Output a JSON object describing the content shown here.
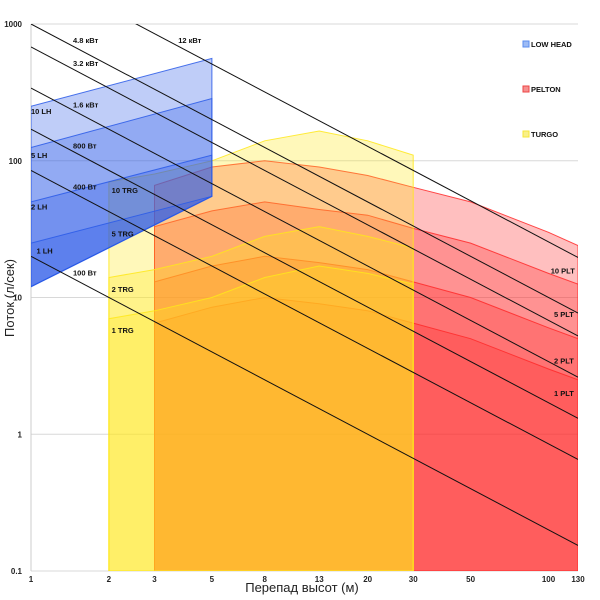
{
  "chart_data": {
    "type": "area",
    "xlabel": "Перепад высот (м)",
    "ylabel": "Поток (л/сек)",
    "x_scale": "log",
    "y_scale": "log",
    "xlim": [
      1,
      130
    ],
    "ylim": [
      0.1,
      1000
    ],
    "x_ticks": [
      {
        "value": 1,
        "label": "1"
      },
      {
        "value": 2,
        "label": "2"
      },
      {
        "value": 3,
        "label": "3"
      },
      {
        "value": 5,
        "label": "5"
      },
      {
        "value": 8,
        "label": "8"
      },
      {
        "value": 13,
        "label": "13"
      },
      {
        "value": 20,
        "label": "20"
      },
      {
        "value": 30,
        "label": "30"
      },
      {
        "value": 50,
        "label": "50"
      },
      {
        "value": 100,
        "label": "100"
      },
      {
        "value": 130,
        "label": "130"
      }
    ],
    "y_ticks": [
      {
        "value": 0.1,
        "label": "0.1"
      },
      {
        "value": 1,
        "label": "1"
      },
      {
        "value": 10,
        "label": "10"
      },
      {
        "value": 100,
        "label": "100"
      },
      {
        "value": 1000,
        "label": "1000"
      }
    ],
    "grid": "horizontal",
    "legend": [
      {
        "name": "LOW HEAD",
        "color": "#5b8def"
      },
      {
        "name": "PELTON",
        "color": "#ee4444"
      },
      {
        "name": "TURGO",
        "color": "#f5e63a"
      }
    ],
    "legend_placement": "top-right",
    "power_lines": [
      {
        "label": "100 Вт",
        "q_at_1m": 20
      },
      {
        "label": "400 Вт",
        "q_at_1m": 85
      },
      {
        "label": "800 Вт",
        "q_at_1m": 170
      },
      {
        "label": "1.6 кВт",
        "q_at_1m": 340
      },
      {
        "label": "3.2 кВт",
        "q_at_1m": 680
      },
      {
        "label": "4.8 кВт",
        "q_at_1m": 1000
      },
      {
        "label": "12 кВт",
        "q_at_1m": 2550
      }
    ],
    "regions": [
      {
        "family": "PELTON",
        "color": "#ff2a2a",
        "opacity": 0.3,
        "points": [
          [
            3,
            0.1
          ],
          [
            130,
            0.1
          ],
          [
            130,
            24
          ],
          [
            100,
            30
          ],
          [
            50,
            50
          ],
          [
            30,
            64
          ],
          [
            20,
            78
          ],
          [
            13,
            90
          ],
          [
            8,
            100
          ],
          [
            5,
            90
          ],
          [
            3,
            66
          ]
        ]
      },
      {
        "family": "PELTON",
        "color": "#ff2a2a",
        "opacity": 0.3,
        "points": [
          [
            3,
            0.1
          ],
          [
            130,
            0.1
          ],
          [
            130,
            12.5
          ],
          [
            100,
            15
          ],
          [
            50,
            25
          ],
          [
            30,
            32
          ],
          [
            20,
            40
          ],
          [
            13,
            44
          ],
          [
            8,
            50
          ],
          [
            5,
            43
          ],
          [
            3,
            33
          ]
        ]
      },
      {
        "family": "PELTON",
        "color": "#ff2a2a",
        "opacity": 0.3,
        "points": [
          [
            3,
            0.1
          ],
          [
            130,
            0.1
          ],
          [
            130,
            5
          ],
          [
            100,
            6
          ],
          [
            50,
            10
          ],
          [
            30,
            13
          ],
          [
            20,
            16
          ],
          [
            13,
            18
          ],
          [
            8,
            20
          ],
          [
            5,
            17
          ],
          [
            3,
            13
          ]
        ]
      },
      {
        "family": "PELTON",
        "color": "#ff2a2a",
        "opacity": 0.3,
        "points": [
          [
            3,
            0.1
          ],
          [
            130,
            0.1
          ],
          [
            130,
            2.5
          ],
          [
            100,
            3
          ],
          [
            50,
            5
          ],
          [
            30,
            6.5
          ],
          [
            20,
            8
          ],
          [
            13,
            9
          ],
          [
            8,
            10
          ],
          [
            5,
            8.5
          ],
          [
            3,
            6.5
          ]
        ]
      },
      {
        "family": "TURGO",
        "color": "#ffe81a",
        "opacity": 0.3,
        "points": [
          [
            2,
            0.1
          ],
          [
            30,
            0.1
          ],
          [
            30,
            110
          ],
          [
            20,
            140
          ],
          [
            13,
            165
          ],
          [
            8,
            140
          ],
          [
            5,
            100
          ],
          [
            3,
            80
          ],
          [
            2,
            70
          ]
        ]
      },
      {
        "family": "TURGO",
        "color": "#ffe81a",
        "opacity": 0.3,
        "points": [
          [
            2,
            0.1
          ],
          [
            30,
            0.1
          ],
          [
            30,
            23
          ],
          [
            20,
            28
          ],
          [
            13,
            33
          ],
          [
            8,
            28
          ],
          [
            5,
            20
          ],
          [
            3,
            16
          ],
          [
            2,
            14
          ]
        ]
      },
      {
        "family": "TURGO",
        "color": "#ffe81a",
        "opacity": 0.3,
        "points": [
          [
            2,
            0.1
          ],
          [
            30,
            0.1
          ],
          [
            30,
            12.5
          ],
          [
            20,
            15
          ],
          [
            13,
            17
          ],
          [
            8,
            14
          ],
          [
            5,
            10
          ],
          [
            3,
            8
          ],
          [
            2,
            7
          ]
        ]
      },
      {
        "family": "LOW HEAD",
        "color": "#2a5be8",
        "opacity": 0.3,
        "points": [
          [
            1,
            12
          ],
          [
            5,
            55
          ],
          [
            5,
            560
          ],
          [
            1,
            250
          ]
        ]
      },
      {
        "family": "LOW HEAD",
        "color": "#2a5be8",
        "opacity": 0.3,
        "points": [
          [
            1,
            12
          ],
          [
            5,
            55
          ],
          [
            5,
            285
          ],
          [
            1,
            125
          ]
        ]
      },
      {
        "family": "LOW HEAD",
        "color": "#2a5be8",
        "opacity": 0.3,
        "points": [
          [
            1,
            12
          ],
          [
            5,
            55
          ],
          [
            5,
            110
          ],
          [
            1,
            50
          ]
        ]
      },
      {
        "family": "LOW HEAD",
        "color": "#2a5be8",
        "opacity": 0.3,
        "points": [
          [
            1,
            12
          ],
          [
            5,
            55
          ],
          [
            5,
            55
          ],
          [
            1,
            25
          ]
        ]
      }
    ],
    "series_labels": [
      {
        "text": "10 LH",
        "x": 1.0,
        "y": 220
      },
      {
        "text": "5 LH",
        "x": 1.0,
        "y": 105
      },
      {
        "text": "2 LH",
        "x": 1.0,
        "y": 44
      },
      {
        "text": "1 LH",
        "x": 1.05,
        "y": 21
      },
      {
        "text": "10 TRG",
        "x": 2.05,
        "y": 58
      },
      {
        "text": "5 TRG",
        "x": 2.05,
        "y": 28
      },
      {
        "text": "2 TRG",
        "x": 2.05,
        "y": 11
      },
      {
        "text": "1 TRG",
        "x": 2.05,
        "y": 5.5
      },
      {
        "text": "10 PLT",
        "x": 102,
        "y": 15
      },
      {
        "text": "5 PLT",
        "x": 105,
        "y": 7.2
      },
      {
        "text": "2 PLT",
        "x": 105,
        "y": 3.3
      },
      {
        "text": "1 PLT",
        "x": 105,
        "y": 1.9
      }
    ]
  }
}
